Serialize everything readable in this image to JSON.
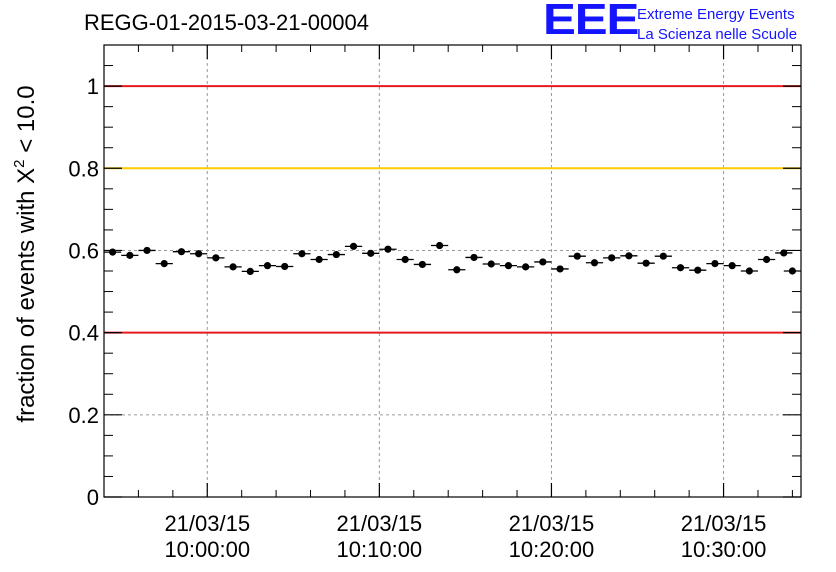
{
  "chart_data": {
    "type": "scatter",
    "title": "REGG-01-2015-03-21-00004",
    "ylabel_prefix": "fraction of events with ",
    "ylabel_symbol": "X",
    "ylabel_sup": "2",
    "ylabel_suffix": " < 10.0",
    "xlabel": "",
    "ylim": [
      0,
      1.1
    ],
    "xlim_minutes": [
      -6,
      34.5
    ],
    "x_ticks": [
      {
        "minute": 0,
        "date": "21/03/15",
        "time": "10:00:00"
      },
      {
        "minute": 10,
        "date": "21/03/15",
        "time": "10:10:00"
      },
      {
        "minute": 20,
        "date": "21/03/15",
        "time": "10:20:00"
      },
      {
        "minute": 30,
        "date": "21/03/15",
        "time": "10:30:00"
      }
    ],
    "y_ticks": [
      "0",
      "0.2",
      "0.4",
      "0.6",
      "0.8",
      "1"
    ],
    "y_tick_values": [
      0,
      0.2,
      0.4,
      0.6,
      0.8,
      1.0
    ],
    "grid": true,
    "bin_width_minutes": 1,
    "reference_lines": [
      {
        "value": 1.0,
        "color": "#e41a1c"
      },
      {
        "value": 0.8,
        "color": "#ffcc00"
      },
      {
        "value": 0.4,
        "color": "#e41a1c"
      }
    ],
    "x_minutes": [
      -5.5,
      -4.5,
      -3.5,
      -2.5,
      -1.5,
      -0.5,
      0.5,
      1.5,
      2.5,
      3.5,
      4.5,
      5.5,
      6.5,
      7.5,
      8.5,
      9.5,
      10.5,
      11.5,
      12.5,
      13.5,
      14.5,
      15.5,
      16.5,
      17.5,
      18.5,
      19.5,
      20.5,
      21.5,
      22.5,
      23.5,
      24.5,
      25.5,
      26.5,
      27.5,
      28.5,
      29.5,
      30.5,
      31.5,
      32.5,
      33.5,
      34.0
    ],
    "values": [
      0.596,
      0.588,
      0.6,
      0.568,
      0.597,
      0.592,
      0.582,
      0.56,
      0.549,
      0.563,
      0.561,
      0.592,
      0.578,
      0.59,
      0.61,
      0.593,
      0.603,
      0.578,
      0.566,
      0.612,
      0.553,
      0.583,
      0.567,
      0.563,
      0.56,
      0.572,
      0.555,
      0.586,
      0.57,
      0.582,
      0.587,
      0.569,
      0.586,
      0.558,
      0.552,
      0.568,
      0.563,
      0.55,
      0.578,
      0.594,
      0.55
    ],
    "errors": [
      0.008,
      0.008,
      0.008,
      0.008,
      0.008,
      0.008,
      0.008,
      0.008,
      0.008,
      0.008,
      0.008,
      0.008,
      0.008,
      0.008,
      0.008,
      0.008,
      0.008,
      0.008,
      0.008,
      0.008,
      0.008,
      0.008,
      0.008,
      0.008,
      0.008,
      0.008,
      0.008,
      0.008,
      0.008,
      0.008,
      0.008,
      0.008,
      0.008,
      0.008,
      0.008,
      0.008,
      0.008,
      0.008,
      0.008,
      0.008,
      0.008
    ],
    "marker_color": "#000000"
  },
  "logo": {
    "mark": "EEE",
    "line1": "Extreme Energy Events",
    "line2": "La Scienza nelle Scuole",
    "color": "#1414ff"
  }
}
